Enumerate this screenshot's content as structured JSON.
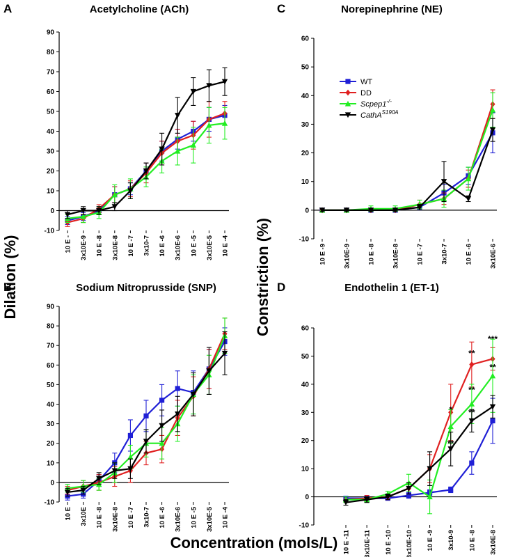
{
  "figure": {
    "ylabel_dilation": "Dilation (%)",
    "ylabel_constriction": "Constriction (%)",
    "xlabel": "Concentration (mols/L)"
  },
  "legend": [
    {
      "name": "WT",
      "color": "#1f1fd6",
      "marker": "square",
      "italic": false,
      "base": "WT",
      "sup": ""
    },
    {
      "name": "DD",
      "color": "#e02020",
      "marker": "diamond",
      "italic": false,
      "base": "DD",
      "sup": ""
    },
    {
      "name": "Scpep1-/-",
      "color": "#22ee22",
      "marker": "triangle-up",
      "italic": true,
      "base": "Scpep1",
      "sup": "-/-"
    },
    {
      "name": "CathA S190A",
      "color": "#000000",
      "marker": "triangle-down",
      "italic": true,
      "base": "CathA",
      "sup": "S190A"
    }
  ],
  "chart_data": [
    {
      "panel": "A",
      "type": "line",
      "title": "Acetylcholine (ACh)",
      "categories": [
        "10 E -",
        "3x10E-9",
        "10 E -8",
        "3x10E-8",
        "10 E -7",
        "3x10-7",
        "10 E -6",
        "3x10E-6",
        "10 E -5",
        "3x10E-5",
        "10 E -4"
      ],
      "ylim": [
        -10,
        90
      ],
      "yticks": [
        -10,
        0,
        10,
        20,
        30,
        40,
        50,
        60,
        70,
        80,
        90
      ],
      "series": [
        {
          "name": "WT",
          "values": [
            -5,
            -3,
            0,
            8,
            11,
            20,
            30,
            36,
            40,
            46,
            48
          ],
          "errors": [
            2,
            2,
            2,
            4,
            3,
            4,
            5,
            5,
            5,
            6,
            5
          ]
        },
        {
          "name": "DD",
          "values": [
            -6,
            -4,
            1,
            8,
            11,
            19,
            29,
            35,
            38,
            46,
            49
          ],
          "errors": [
            2,
            2,
            2,
            4,
            4,
            5,
            6,
            6,
            7,
            9,
            6
          ]
        },
        {
          "name": "Scpep1-/-",
          "values": [
            -4,
            -3,
            -1,
            8,
            11,
            17,
            25,
            30,
            33,
            43,
            44
          ],
          "errors": [
            2,
            3,
            3,
            5,
            5,
            5,
            6,
            7,
            9,
            9,
            8
          ]
        },
        {
          "name": "CathA S190A",
          "values": [
            -2,
            0,
            0,
            2,
            10,
            20,
            31,
            48,
            60,
            63,
            65
          ],
          "errors": [
            2,
            2,
            2,
            2,
            4,
            4,
            8,
            9,
            7,
            8,
            7
          ]
        }
      ]
    },
    {
      "panel": "B",
      "type": "line",
      "title": "Sodium  Nitroprusside (SNP)",
      "categories": [
        "10 E",
        "3x10E",
        "10 E -8",
        "3x10E-8",
        "10 E -7",
        "3x10-7",
        "10 E -6",
        "3x10E-6",
        "10 E -5",
        "3x10E-5",
        "10 E -4"
      ],
      "ylim": [
        -10,
        90
      ],
      "yticks": [
        -10,
        0,
        10,
        20,
        30,
        40,
        50,
        60,
        70,
        80,
        90
      ],
      "series": [
        {
          "name": "WT",
          "values": [
            -7,
            -6,
            1,
            10,
            24,
            34,
            42,
            48,
            46,
            58,
            72
          ],
          "errors": [
            2,
            2,
            3,
            5,
            8,
            8,
            8,
            9,
            11,
            10,
            7
          ]
        },
        {
          "name": "DD",
          "values": [
            -4,
            -2,
            0,
            3,
            6,
            15,
            17,
            33,
            44,
            58,
            76
          ],
          "errors": [
            2,
            3,
            4,
            5,
            6,
            6,
            7,
            9,
            10,
            10,
            8
          ]
        },
        {
          "name": "Scpep1-/-",
          "values": [
            -3,
            -2,
            -1,
            5,
            13,
            20,
            20,
            30,
            45,
            55,
            75
          ],
          "errors": [
            2,
            3,
            3,
            5,
            6,
            7,
            8,
            9,
            10,
            10,
            9
          ]
        },
        {
          "name": "CathA S190A",
          "values": [
            -5,
            -4,
            2,
            6,
            7,
            21,
            29,
            35,
            45,
            57,
            66
          ],
          "errors": [
            2,
            2,
            3,
            4,
            5,
            6,
            8,
            9,
            11,
            12,
            11
          ]
        }
      ]
    },
    {
      "panel": "C",
      "type": "line",
      "title": "Norepinephrine (NE)",
      "categories": [
        "10 E -9",
        "3x10E-9",
        "10 E -8",
        "3x10E-8",
        "10 E -7",
        "3x10-7",
        "10 E -6",
        "3x10E-6"
      ],
      "ylim": [
        -10,
        60
      ],
      "yticks": [
        -10,
        0,
        10,
        20,
        30,
        40,
        50,
        60
      ],
      "series": [
        {
          "name": "WT",
          "values": [
            0,
            0,
            0,
            0,
            1,
            6,
            12,
            27
          ],
          "errors": [
            0.5,
            0.5,
            0.5,
            0.5,
            1,
            3,
            3,
            7
          ]
        },
        {
          "name": "DD",
          "values": [
            0,
            0,
            0,
            0,
            2,
            4,
            11,
            37
          ],
          "errors": [
            0.5,
            0.5,
            0.5,
            0.5,
            1.5,
            2,
            3,
            5
          ]
        },
        {
          "name": "Scpep1-/-",
          "values": [
            0,
            0,
            0.5,
            0.5,
            2,
            4,
            11,
            35
          ],
          "errors": [
            0.5,
            0.5,
            1,
            1,
            1.5,
            3,
            4,
            6
          ]
        },
        {
          "name": "CathA S190A",
          "values": [
            0,
            0,
            0,
            0,
            1,
            10,
            4,
            28
          ],
          "errors": [
            0.5,
            0.5,
            0.5,
            0.5,
            1,
            7,
            1,
            4
          ]
        }
      ]
    },
    {
      "panel": "D",
      "type": "line",
      "title": "Endothelin 1 (ET-1)",
      "categories": [
        "10 E -11",
        "3x10E-11",
        "10 E -10",
        "3x10E-10",
        "10 E -9",
        "3x10-9",
        "10 E -8",
        "3x10E-8"
      ],
      "ylim": [
        -10,
        60
      ],
      "yticks": [
        -10,
        0,
        10,
        20,
        30,
        40,
        50,
        60
      ],
      "annotations": [
        {
          "x": "3x10-9",
          "y": 30,
          "text": "*"
        },
        {
          "x": "3x10-9",
          "y": 18,
          "text": "**"
        },
        {
          "x": "10 E -8",
          "y": 50,
          "text": "**"
        },
        {
          "x": "10 E -8",
          "y": 37,
          "text": "**"
        },
        {
          "x": "10 E -8",
          "y": 29,
          "text": "**"
        },
        {
          "x": "3x10E-8",
          "y": 55,
          "text": "***"
        },
        {
          "x": "3x10E-8",
          "y": 45,
          "text": "**"
        }
      ],
      "series": [
        {
          "name": "WT",
          "values": [
            -0.5,
            -0.5,
            -0.5,
            0.5,
            1.5,
            2.5,
            12,
            27
          ],
          "errors": [
            0.5,
            0.5,
            0.5,
            1,
            1,
            1,
            4,
            8
          ]
        },
        {
          "name": "DD",
          "values": [
            -1,
            -0.5,
            0,
            3,
            10,
            30,
            47,
            49
          ],
          "errors": [
            1,
            1,
            1,
            2,
            5,
            10,
            8,
            4
          ]
        },
        {
          "name": "Scpep1-/-",
          "values": [
            -1,
            -1,
            1,
            5,
            0,
            25,
            33,
            43
          ],
          "errors": [
            1,
            1,
            1,
            3,
            6,
            6,
            7,
            13
          ]
        },
        {
          "name": "CathA S190A",
          "values": [
            -2,
            -1,
            0,
            3,
            10,
            17,
            27,
            32
          ],
          "errors": [
            1,
            1,
            1,
            2,
            6,
            6,
            4,
            4
          ]
        }
      ]
    }
  ]
}
